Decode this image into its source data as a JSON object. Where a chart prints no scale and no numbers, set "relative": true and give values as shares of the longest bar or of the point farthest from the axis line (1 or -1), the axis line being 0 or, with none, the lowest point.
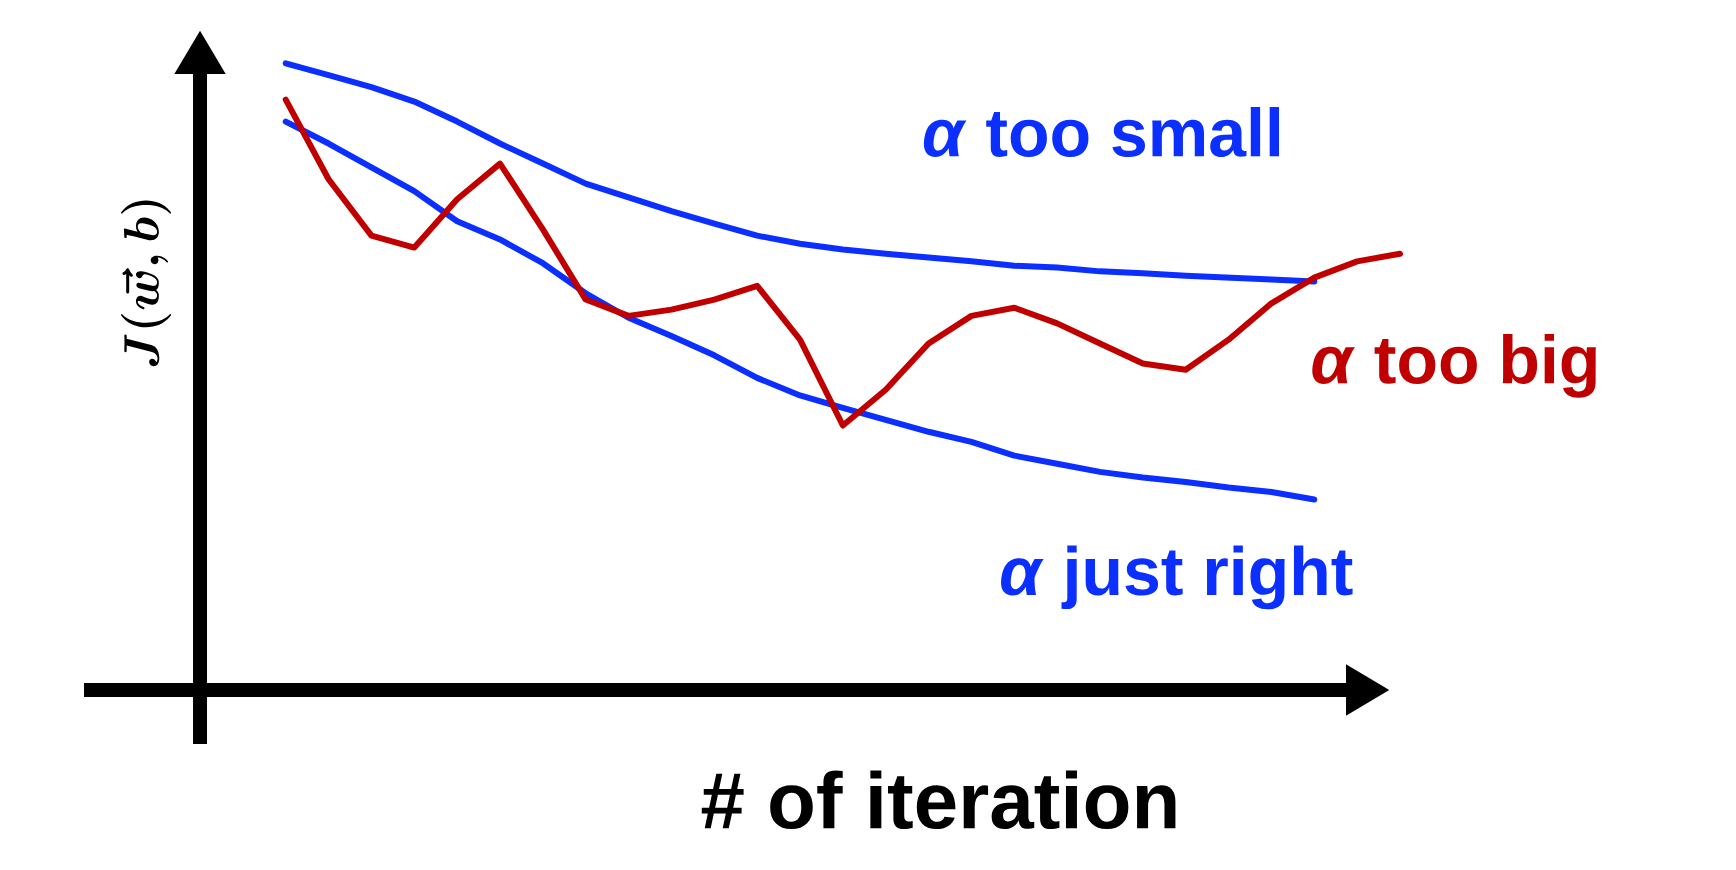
{
  "chart_data": {
    "type": "line",
    "relative": true,
    "xlabel": "# of iteration",
    "ylabel": "\\boldsymbol{J(\\vec{w}, b)}",
    "marker": "none",
    "categories": [
      null,
      null,
      null,
      null,
      null,
      null,
      null,
      null,
      null,
      null,
      null,
      null,
      null,
      null,
      null,
      null,
      null,
      null,
      null,
      null,
      null,
      null,
      null,
      null,
      null,
      null,
      null
    ],
    "series": [
      {
        "name": "*α* too small",
        "color": "#0a2fff",
        "values": [
          1.0,
          0.981,
          0.962,
          0.939,
          0.907,
          0.872,
          0.84,
          0.808,
          0.786,
          0.764,
          0.744,
          0.725,
          0.712,
          0.703,
          0.696,
          0.69,
          0.684,
          0.677,
          0.674,
          0.668,
          0.665,
          0.661,
          0.658,
          0.655,
          0.652,
          null,
          null
        ]
      },
      {
        "name": "*α* just right",
        "color": "#0a2fff",
        "values": [
          0.907,
          0.872,
          0.834,
          0.796,
          0.748,
          0.719,
          0.681,
          0.633,
          0.594,
          0.565,
          0.534,
          0.498,
          0.47,
          0.45,
          0.431,
          0.412,
          0.396,
          0.374,
          0.361,
          0.348,
          0.339,
          0.332,
          0.323,
          0.316,
          0.304,
          null,
          null
        ]
      },
      {
        "name": "*α* too big",
        "color": "#c00000",
        "values": [
          0.942,
          0.815,
          0.725,
          0.706,
          0.783,
          0.84,
          0.735,
          0.623,
          0.597,
          0.607,
          0.623,
          0.645,
          0.559,
          0.422,
          0.479,
          0.553,
          0.597,
          0.61,
          0.585,
          0.553,
          0.521,
          0.511,
          0.559,
          0.617,
          0.658,
          0.684,
          0.696
        ]
      }
    ]
  }
}
